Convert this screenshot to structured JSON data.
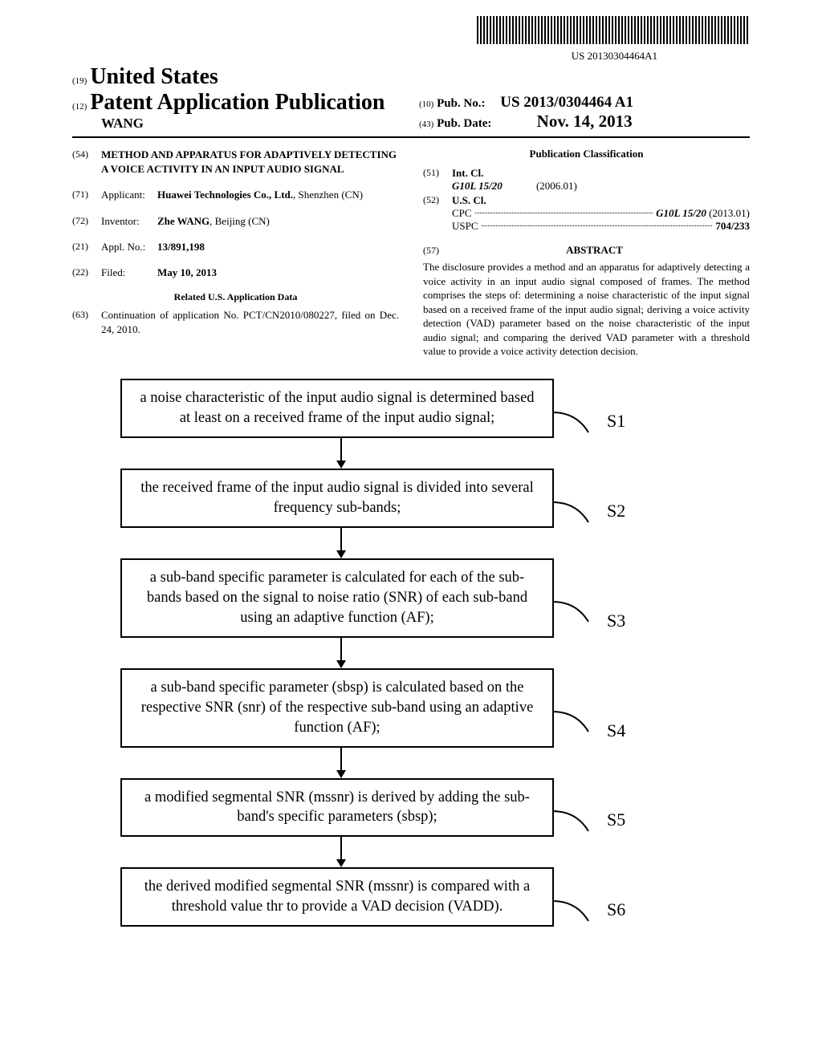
{
  "barcode_number": "US 20130304464A1",
  "header": {
    "country_num": "(19)",
    "country": "United States",
    "pub_type_num": "(12)",
    "pub_type": "Patent Application Publication",
    "author": "WANG",
    "pub_no_num": "(10)",
    "pub_no_label": "Pub. No.:",
    "pub_no_value": "US 2013/0304464 A1",
    "pub_date_num": "(43)",
    "pub_date_label": "Pub. Date:",
    "pub_date_value": "Nov. 14, 2013"
  },
  "left": {
    "title_num": "(54)",
    "title": "METHOD AND APPARATUS FOR ADAPTIVELY DETECTING A VOICE ACTIVITY IN AN INPUT AUDIO SIGNAL",
    "applicant_num": "(71)",
    "applicant_label": "Applicant:",
    "applicant_value": "Huawei Technologies Co., Ltd.",
    "applicant_location": "Shenzhen (CN)",
    "inventor_num": "(72)",
    "inventor_label": "Inventor:",
    "inventor_value": "Zhe WANG",
    "inventor_location": ", Beijing (CN)",
    "appl_num": "(21)",
    "appl_label": "Appl. No.:",
    "appl_value": "13/891,198",
    "filed_num": "(22)",
    "filed_label": "Filed:",
    "filed_value": "May 10, 2013",
    "related_heading": "Related U.S. Application Data",
    "cont_num": "(63)",
    "cont_text": "Continuation of application No. PCT/CN2010/080227, filed on Dec. 24, 2010."
  },
  "right": {
    "classification_heading": "Publication Classification",
    "intcl_num": "(51)",
    "intcl_label": "Int. Cl.",
    "intcl_code": "G10L 15/20",
    "intcl_year": "(2006.01)",
    "uscl_num": "(52)",
    "uscl_label": "U.S. Cl.",
    "cpc_label": "CPC",
    "cpc_value": "G10L 15/20",
    "cpc_year": "(2013.01)",
    "uspc_label": "USPC",
    "uspc_value": "704/233",
    "abstract_num": "(57)",
    "abstract_heading": "ABSTRACT",
    "abstract_text": "The disclosure provides a method and an apparatus for adaptively detecting a voice activity in an input audio signal composed of frames. The method comprises the steps of: determining a noise characteristic of the input signal based on a received frame of the input audio signal; deriving a voice activity detection (VAD) parameter based on the noise characteristic of the input audio signal; and comparing the derived VAD parameter with a threshold value to provide a voice activity detection decision."
  },
  "flowchart": {
    "steps": [
      {
        "label": "S1",
        "text": "a noise characteristic of the input audio signal is determined based at least on a received frame of the input audio signal;"
      },
      {
        "label": "S2",
        "text": "the received frame of the input audio signal is divided into several frequency sub-bands;"
      },
      {
        "label": "S3",
        "text": "a sub-band specific parameter is calculated for each of the sub-bands based on the signal to noise ratio (SNR) of each sub-band using an adaptive function (AF);"
      },
      {
        "label": "S4",
        "text": "a sub-band specific parameter (sbsp) is calculated based on the respective SNR (snr) of the respective sub-band using an adaptive function (AF);"
      },
      {
        "label": "S5",
        "text": "a modified segmental SNR (mssnr) is derived by adding the sub-band's specific parameters (sbsp);"
      },
      {
        "label": "S6",
        "text": "the derived modified segmental SNR (mssnr) is compared with a threshold value thr to provide a VAD decision (VADD)."
      }
    ]
  }
}
